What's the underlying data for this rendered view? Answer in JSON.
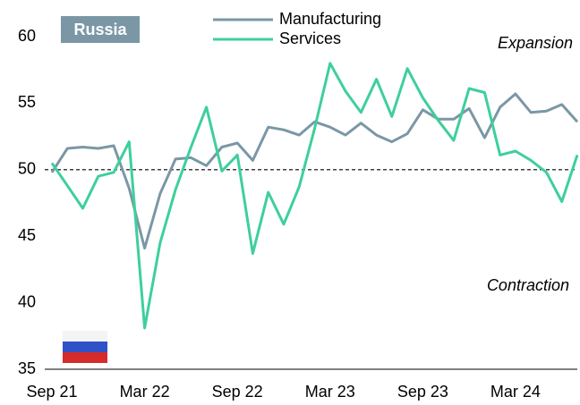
{
  "chart_data": {
    "type": "line",
    "title": "Russia",
    "annotations": [
      "Expansion",
      "Contraction"
    ],
    "reference_line": 50,
    "categories": [
      "Sep 21",
      null,
      null,
      null,
      null,
      null,
      "Mar 22",
      null,
      null,
      null,
      null,
      null,
      "Sep 22",
      null,
      null,
      null,
      null,
      null,
      "Mar 23",
      null,
      null,
      null,
      null,
      null,
      "Sep 23",
      null,
      null,
      null,
      null,
      null,
      "Mar 24",
      null,
      null,
      null,
      null
    ],
    "series": [
      {
        "name": "Manufacturing",
        "color": "#7b97a6",
        "values": [
          49.8,
          51.6,
          51.7,
          51.6,
          51.8,
          48.6,
          44.1,
          48.2,
          50.8,
          50.9,
          50.3,
          51.7,
          52.0,
          50.7,
          53.2,
          53.0,
          52.6,
          53.6,
          53.2,
          52.6,
          53.5,
          52.6,
          52.1,
          52.7,
          54.5,
          53.8,
          53.8,
          54.6,
          52.4,
          54.7,
          55.7,
          54.3,
          54.4,
          54.9,
          53.6
        ]
      },
      {
        "name": "Services",
        "color": "#3ecf9c",
        "values": [
          50.5,
          48.8,
          47.1,
          49.5,
          49.8,
          52.1,
          38.1,
          44.5,
          48.5,
          51.7,
          54.7,
          49.9,
          51.1,
          43.7,
          48.3,
          45.9,
          48.7,
          53.1,
          58.0,
          55.9,
          54.3,
          56.8,
          54.0,
          57.6,
          55.4,
          53.7,
          52.2,
          56.1,
          55.8,
          51.1,
          51.4,
          50.7,
          49.8,
          47.6,
          51.1
        ]
      }
    ],
    "ylim": [
      35,
      60
    ],
    "yticks": [
      35,
      40,
      45,
      50,
      55,
      60
    ],
    "grid": false
  }
}
